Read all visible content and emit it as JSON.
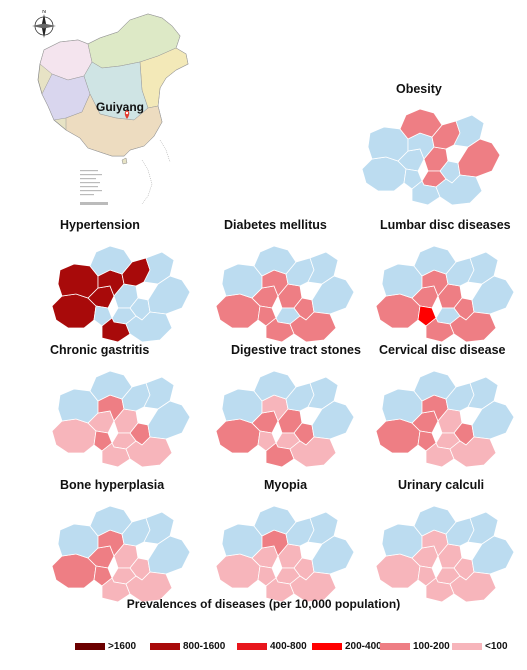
{
  "inset": {
    "city_label": "Guiyang",
    "compass_label": "N"
  },
  "colors": {
    "base": "#bcdcf0",
    "border": "#ffffff",
    "scale": [
      "#6b0000",
      "#a80a0a",
      "#e8161d",
      "#ff0000",
      "#ee7e84",
      "#f7b5bb"
    ]
  },
  "panels": [
    {
      "id": "obesity",
      "title": "Obesity",
      "classes": [
        0,
        0,
        0,
        0,
        0,
        4,
        4,
        0,
        4,
        4,
        0,
        0,
        4,
        0
      ]
    },
    {
      "id": "hypertension",
      "title": "Hypertension",
      "classes": [
        1,
        1,
        1,
        1,
        0,
        0,
        0,
        0,
        1,
        0,
        1,
        0,
        0,
        0
      ]
    },
    {
      "id": "diabetes",
      "title": "Diabetes mellitus",
      "classes": [
        4,
        4,
        0,
        4,
        4,
        4,
        0,
        4,
        0,
        0,
        4,
        0,
        0,
        4
      ]
    },
    {
      "id": "lumbar",
      "title": "Lumbar disc diseases",
      "classes": [
        4,
        4,
        0,
        4,
        3,
        4,
        0,
        4,
        0,
        0,
        4,
        0,
        0,
        4
      ]
    },
    {
      "id": "gastritis",
      "title": "Chronic gastritis",
      "classes": [
        5,
        5,
        0,
        4,
        4,
        5,
        5,
        4,
        0,
        0,
        5,
        0,
        0,
        5
      ]
    },
    {
      "id": "digestive",
      "title": "Digestive tract stones",
      "classes": [
        4,
        4,
        0,
        5,
        5,
        4,
        5,
        4,
        0,
        0,
        4,
        0,
        0,
        5
      ]
    },
    {
      "id": "cervical",
      "title": "Cervical disc disease",
      "classes": [
        4,
        4,
        0,
        4,
        4,
        5,
        5,
        4,
        0,
        0,
        5,
        0,
        0,
        5
      ]
    },
    {
      "id": "bone",
      "title": "Bone hyperplasia",
      "classes": [
        4,
        4,
        0,
        4,
        4,
        5,
        5,
        5,
        0,
        0,
        5,
        0,
        0,
        5
      ]
    },
    {
      "id": "myopia",
      "title": "Myopia",
      "classes": [
        5,
        5,
        0,
        4,
        5,
        5,
        5,
        5,
        0,
        0,
        5,
        0,
        0,
        5
      ]
    },
    {
      "id": "urinary",
      "title": "Urinary calculi",
      "classes": [
        5,
        5,
        0,
        5,
        5,
        5,
        5,
        5,
        0,
        0,
        5,
        0,
        0,
        5
      ]
    }
  ],
  "legend": {
    "title": "Prevalences of diseases (per 10,000 population)",
    "items": [
      {
        "label": ">1600",
        "color": "#6b0000"
      },
      {
        "label": "800-1600",
        "color": "#a80a0a"
      },
      {
        "label": "400-800",
        "color": "#e8161d"
      },
      {
        "label": "200-400",
        "color": "#ff0000"
      },
      {
        "label": "100-200",
        "color": "#ee7e84"
      },
      {
        "label": "<100",
        "color": "#f7b5bb"
      }
    ]
  }
}
